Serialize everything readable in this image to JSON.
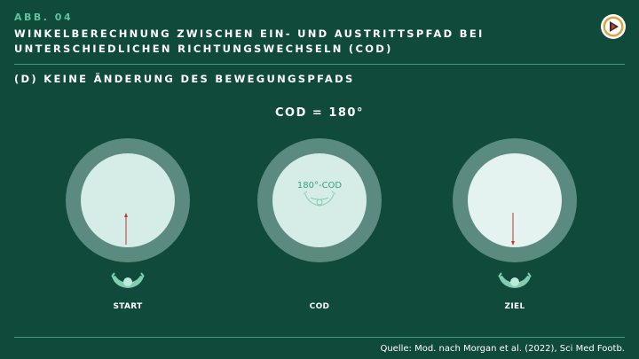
{
  "header": {
    "figure_label": "ABB. 04",
    "title": "WINKELBERECHNUNG ZWISCHEN EIN- UND AUSTRITTSPFAD BEI UNTERSCHIEDLICHEN RICHTUNGSWECHSELN (COD)",
    "subtitle": "(D) KEINE ÄNDERUNG DES BEWEGUNGSPFADS"
  },
  "diagram": {
    "heading": "COD = 180°",
    "center_label": "180°-COD",
    "captions": {
      "start": "START",
      "cod": "COD",
      "ziel": "ZIEL"
    }
  },
  "footer": {
    "source": "Quelle: Mod. nach Morgan et al. (2022), Sci Med Footb."
  },
  "colors": {
    "background": "#0f4a3b",
    "accent": "#5fc39c",
    "ring": "#5a8a80",
    "arrow": "#c0392b"
  }
}
